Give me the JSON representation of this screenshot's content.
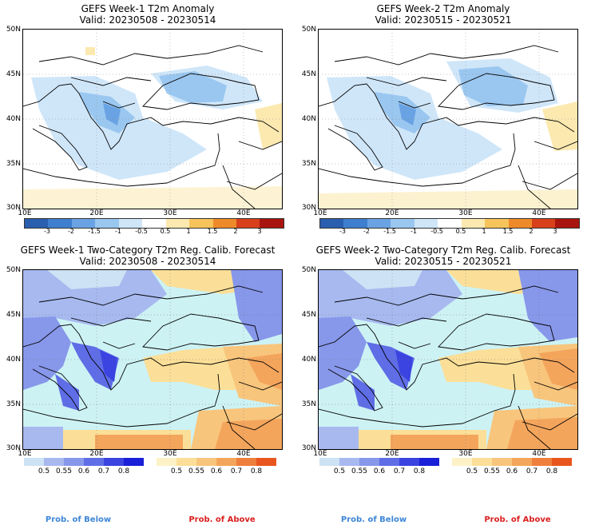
{
  "panels": [
    {
      "title": "GEFS Week-1 T2m Anomaly",
      "valid": "Valid: 20230508 - 20230514"
    },
    {
      "title": "GEFS Week-2 T2m Anomaly",
      "valid": "Valid: 20230515 - 20230521"
    },
    {
      "title": "GEFS Week-1 Two-Category T2m Reg. Calib. Forecast",
      "valid": "Valid: 20230508 - 20230514"
    },
    {
      "title": "GEFS Week-2 Two-Category T2m Reg. Calib. Forecast",
      "valid": "Valid: 20230515 - 20230521"
    }
  ],
  "lat_labels": [
    "50N",
    "45N",
    "40N",
    "35N",
    "30N"
  ],
  "lon_labels": [
    "10E",
    "20E",
    "30E",
    "40E"
  ],
  "anomaly_colorbar": {
    "labels": [
      "-3",
      "-2",
      "-1.5",
      "-1",
      "-0.5",
      "0.5",
      "1",
      "1.5",
      "2",
      "3"
    ],
    "colors": [
      "#2a5fb0",
      "#3f7fd0",
      "#6aa3e3",
      "#9ac7f0",
      "#cfe6f9",
      "#ffffff",
      "#fbe9b0",
      "#f6c45a",
      "#ef8a2a",
      "#d8401c",
      "#a8150e"
    ]
  },
  "prob_below": {
    "labels": [
      "0.5",
      "0.55",
      "0.6",
      "0.7",
      "0.8"
    ],
    "colors": [
      "#cde2f4",
      "#a7b9ef",
      "#8797ea",
      "#5f6de6",
      "#3b43e0",
      "#1a1fd8"
    ],
    "caption": "Prob. of Below",
    "caption_color": "#3d86d6"
  },
  "prob_above": {
    "labels": [
      "0.5",
      "0.55",
      "0.6",
      "0.7",
      "0.8"
    ],
    "colors": [
      "#fdf2c6",
      "#fbdf98",
      "#f8c57c",
      "#f4a55c",
      "#ef7f3c",
      "#e8561e"
    ],
    "caption": "Prob. of Above",
    "caption_color": "#d91e1e"
  },
  "colors": {
    "sea_prob": "#cdf2f4",
    "cold": "#a6cdf0",
    "cold_dark": "#6aa6e0",
    "warm": "#fbe39a"
  }
}
